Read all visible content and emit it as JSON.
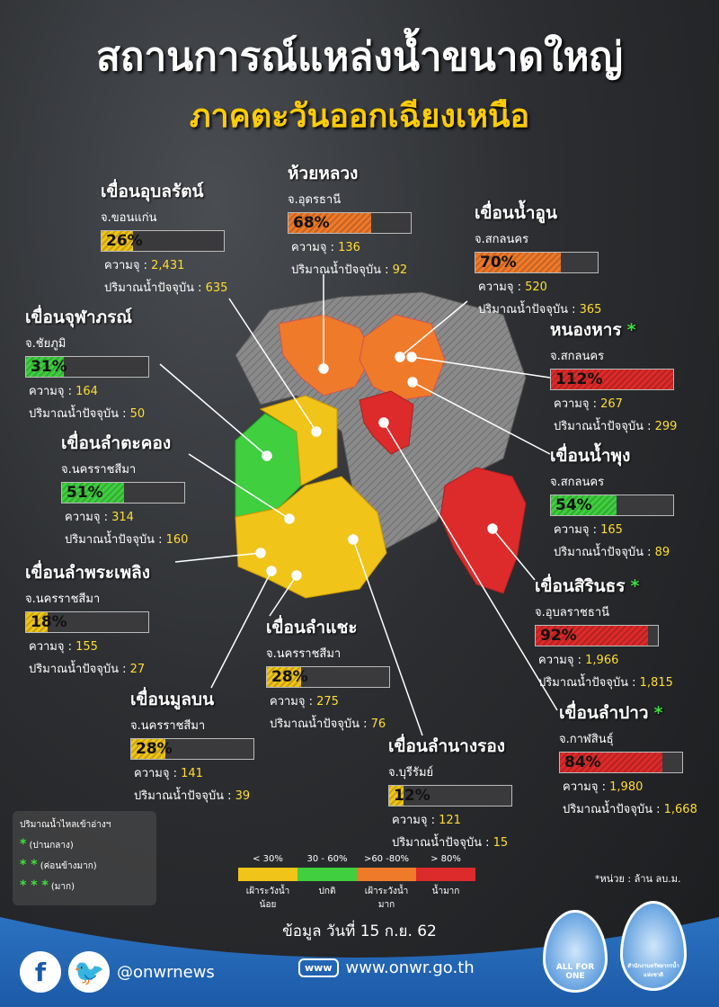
{
  "title": "สถานการณ์แหล่งน้ำขนาดใหญ่",
  "subtitle": "ภาคตะวันออกเฉียงเหนือ",
  "labels": {
    "capacity": "ความจุ : ",
    "current": "ปริมาณน้ำปัจจุบัน : "
  },
  "dams": [
    {
      "name": "เขื่อนอุบลรัตน์",
      "province": "จ.ขอนแก่น",
      "percent": 26,
      "pct_label": "26%",
      "capacity": "2,431",
      "current": "635",
      "stars": "",
      "level": "low"
    },
    {
      "name": "ห้วยหลวง",
      "province": "จ.อุดรธานี",
      "percent": 68,
      "pct_label": "68%",
      "capacity": "136",
      "current": "92",
      "stars": "",
      "level": "high"
    },
    {
      "name": "เขื่อนน้ำอูน",
      "province": "จ.สกลนคร",
      "percent": 70,
      "pct_label": "70%",
      "capacity": "520",
      "current": "365",
      "stars": "",
      "level": "high"
    },
    {
      "name": "เขื่อนจุฬาภรณ์",
      "province": "จ.ชัยภูมิ",
      "percent": 31,
      "pct_label": "31%",
      "capacity": "164",
      "current": "50",
      "stars": "",
      "level": "normal"
    },
    {
      "name": "หนองหาร",
      "province": "จ.สกลนคร",
      "percent": 112,
      "pct_label": "112%",
      "capacity": "267",
      "current": "299",
      "stars": "*",
      "level": "very-high"
    },
    {
      "name": "เขื่อนลำตะคอง",
      "province": "จ.นครราชสีมา",
      "percent": 51,
      "pct_label": "51%",
      "capacity": "314",
      "current": "160",
      "stars": "",
      "level": "normal"
    },
    {
      "name": "เขื่อนน้ำพุง",
      "province": "จ.สกลนคร",
      "percent": 54,
      "pct_label": "54%",
      "capacity": "165",
      "current": "89",
      "stars": "",
      "level": "normal"
    },
    {
      "name": "เขื่อนลำพระเพลิง",
      "province": "จ.นครราชสีมา",
      "percent": 18,
      "pct_label": "18%",
      "capacity": "155",
      "current": "27",
      "stars": "",
      "level": "low"
    },
    {
      "name": "เขื่อนสิรินธร",
      "province": "จ.อุบลราชธานี",
      "percent": 92,
      "pct_label": "92%",
      "capacity": "1,966",
      "current": "1,815",
      "stars": "*",
      "level": "very-high"
    },
    {
      "name": "เขื่อนลำแชะ",
      "province": "จ.นครราชสีมา",
      "percent": 28,
      "pct_label": "28%",
      "capacity": "275",
      "current": "76",
      "stars": "",
      "level": "low"
    },
    {
      "name": "เขื่อนมูลบน",
      "province": "จ.นครราชสีมา",
      "percent": 28,
      "pct_label": "28%",
      "capacity": "141",
      "current": "39",
      "stars": "",
      "level": "low"
    },
    {
      "name": "เขื่อนลำปาว",
      "province": "จ.กาฬสินธุ์",
      "percent": 84,
      "pct_label": "84%",
      "capacity": "1,980",
      "current": "1,668",
      "stars": "*",
      "level": "very-high"
    },
    {
      "name": "เขื่อนลำนางรอง",
      "province": "จ.บุรีรัมย์",
      "percent": 12,
      "pct_label": "12%",
      "capacity": "121",
      "current": "15",
      "stars": "",
      "level": "low"
    }
  ],
  "colors": {
    "low": "#f0c419",
    "normal": "#3fcf3f",
    "high": "#ef7a2a",
    "very-high": "#dd2a2a",
    "none": "#8a8a8a"
  },
  "inflow_legend": {
    "title": "ปริมาณน้ำไหลเข้าอ่างฯ",
    "items": [
      {
        "stars": "*",
        "label": "(ปานกลาง)"
      },
      {
        "stars": "* *",
        "label": "(ค่อนข้างมาก)"
      },
      {
        "stars": "* * *",
        "label": "(มาก)"
      }
    ]
  },
  "scale": [
    {
      "range": "< 30%",
      "label": "เฝ้าระวังน้ำน้อย",
      "color": "#f0c419"
    },
    {
      "range": "30 - 60%",
      "label": "ปกติ",
      "color": "#3fcf3f"
    },
    {
      "range": ">60 -80%",
      "label": "เฝ้าระวังน้ำมาก",
      "color": "#ef7a2a"
    },
    {
      "range": "> 80%",
      "label": "น้ำมาก",
      "color": "#dd2a2a"
    }
  ],
  "unit": "*หน่วย : ล้าน  ลบ.ม.",
  "date": "ข้อมูล วันที่ 15 ก.ย. 62",
  "footer": {
    "social": "@onwrnews",
    "website": "www.onwr.go.th",
    "www_badge": "www",
    "logo1": "ALL FOR ONE",
    "logo2": "สำนักงานทรัพยากรน้ำแห่งชาติ"
  }
}
